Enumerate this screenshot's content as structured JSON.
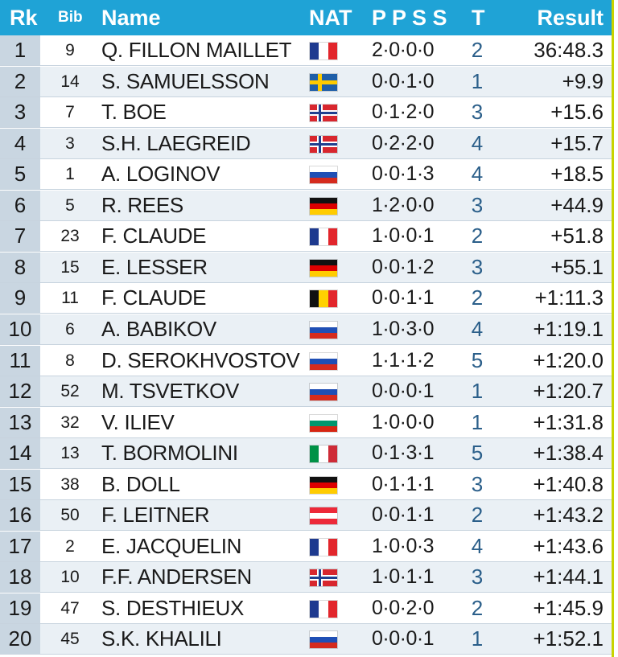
{
  "header": {
    "rank": "Rk",
    "bib": "Bib",
    "name": "Name",
    "nat": "NAT",
    "ppss": "P P S S",
    "t": "T",
    "result": "Result"
  },
  "colors": {
    "header": "#1fa3d6",
    "accent": "#c8d400",
    "rank_cell": "#c9d6e1",
    "row_alt": "#eaf0f5"
  },
  "rows": [
    {
      "rank": "1",
      "bib": "9",
      "name": "Q. FILLON MAILLET",
      "flag": "fra-flag-icon",
      "ppss": "2·0·0·0",
      "t": "2",
      "result": "36:48.3"
    },
    {
      "rank": "2",
      "bib": "14",
      "name": "S. SAMUELSSON",
      "flag": "swe-flag-icon",
      "ppss": "0·0·1·0",
      "t": "1",
      "result": "+9.9"
    },
    {
      "rank": "3",
      "bib": "7",
      "name": "T. BOE",
      "flag": "nor-flag-icon",
      "ppss": "0·1·2·0",
      "t": "3",
      "result": "+15.6"
    },
    {
      "rank": "4",
      "bib": "3",
      "name": "S.H. LAEGREID",
      "flag": "nor-flag-icon",
      "ppss": "0·2·2·0",
      "t": "4",
      "result": "+15.7"
    },
    {
      "rank": "5",
      "bib": "1",
      "name": "A. LOGINOV",
      "flag": "rus-flag-icon",
      "ppss": "0·0·1·3",
      "t": "4",
      "result": "+18.5"
    },
    {
      "rank": "6",
      "bib": "5",
      "name": "R. REES",
      "flag": "ger-flag-icon",
      "ppss": "1·2·0·0",
      "t": "3",
      "result": "+44.9"
    },
    {
      "rank": "7",
      "bib": "23",
      "name": "F. CLAUDE",
      "flag": "fra-flag-icon",
      "ppss": "1·0·0·1",
      "t": "2",
      "result": "+51.8"
    },
    {
      "rank": "8",
      "bib": "15",
      "name": "E. LESSER",
      "flag": "ger-flag-icon",
      "ppss": "0·0·1·2",
      "t": "3",
      "result": "+55.1"
    },
    {
      "rank": "9",
      "bib": "11",
      "name": "F. CLAUDE",
      "flag": "bel-flag-icon",
      "ppss": "0·0·1·1",
      "t": "2",
      "result": "+1:11.3"
    },
    {
      "rank": "10",
      "bib": "6",
      "name": "A. BABIKOV",
      "flag": "rus-flag-icon",
      "ppss": "1·0·3·0",
      "t": "4",
      "result": "+1:19.1"
    },
    {
      "rank": "11",
      "bib": "8",
      "name": "D. SEROKHVOSTOV",
      "flag": "rus-flag-icon",
      "ppss": "1·1·1·2",
      "t": "5",
      "result": "+1:20.0"
    },
    {
      "rank": "12",
      "bib": "52",
      "name": "M. TSVETKOV",
      "flag": "rus-flag-icon",
      "ppss": "0·0·0·1",
      "t": "1",
      "result": "+1:20.7"
    },
    {
      "rank": "13",
      "bib": "32",
      "name": "V. ILIEV",
      "flag": "bul-flag-icon",
      "ppss": "1·0·0·0",
      "t": "1",
      "result": "+1:31.8"
    },
    {
      "rank": "14",
      "bib": "13",
      "name": "T. BORMOLINI",
      "flag": "ita-flag-icon",
      "ppss": "0·1·3·1",
      "t": "5",
      "result": "+1:38.4"
    },
    {
      "rank": "15",
      "bib": "38",
      "name": "B. DOLL",
      "flag": "ger-flag-icon",
      "ppss": "0·1·1·1",
      "t": "3",
      "result": "+1:40.8"
    },
    {
      "rank": "16",
      "bib": "50",
      "name": "F. LEITNER",
      "flag": "aut-flag-icon",
      "ppss": "0·0·1·1",
      "t": "2",
      "result": "+1:43.2"
    },
    {
      "rank": "17",
      "bib": "2",
      "name": "E. JACQUELIN",
      "flag": "fra-flag-icon",
      "ppss": "1·0·0·3",
      "t": "4",
      "result": "+1:43.6"
    },
    {
      "rank": "18",
      "bib": "10",
      "name": "F.F. ANDERSEN",
      "flag": "nor-flag-icon",
      "ppss": "1·0·1·1",
      "t": "3",
      "result": "+1:44.1"
    },
    {
      "rank": "19",
      "bib": "47",
      "name": "S. DESTHIEUX",
      "flag": "fra-flag-icon",
      "ppss": "0·0·2·0",
      "t": "2",
      "result": "+1:45.9"
    },
    {
      "rank": "20",
      "bib": "45",
      "name": "S.K. KHALILI",
      "flag": "rus-flag-icon",
      "ppss": "0·0·0·1",
      "t": "1",
      "result": "+1:52.1"
    }
  ]
}
